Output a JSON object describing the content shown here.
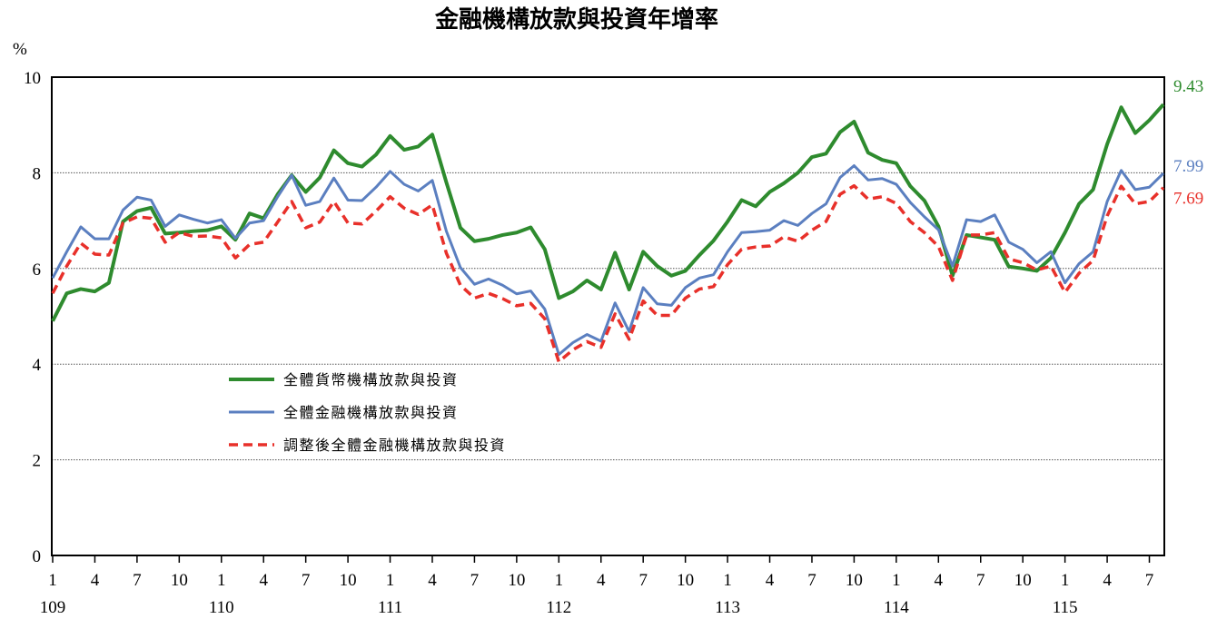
{
  "chart_data": {
    "type": "line",
    "title": "金融機構放款與投資年增率",
    "ylabel": "%",
    "ylim": [
      0,
      10
    ],
    "yticks": [
      0,
      2,
      4,
      6,
      8,
      10
    ],
    "grid": true,
    "legend_position": "lower-left",
    "x_ticks": [
      {
        "index": 0,
        "month": "1",
        "year": "109"
      },
      {
        "index": 3,
        "month": "4"
      },
      {
        "index": 6,
        "month": "7"
      },
      {
        "index": 9,
        "month": "10"
      },
      {
        "index": 12,
        "month": "1",
        "year": "110"
      },
      {
        "index": 15,
        "month": "4"
      },
      {
        "index": 18,
        "month": "7"
      },
      {
        "index": 21,
        "month": "10"
      },
      {
        "index": 24,
        "month": "1",
        "year": "111"
      },
      {
        "index": 27,
        "month": "4"
      },
      {
        "index": 30,
        "month": "7"
      },
      {
        "index": 33,
        "month": "10"
      },
      {
        "index": 36,
        "month": "1",
        "year": "112"
      },
      {
        "index": 39,
        "month": "4"
      },
      {
        "index": 42,
        "month": "7"
      },
      {
        "index": 45,
        "month": "10"
      },
      {
        "index": 48,
        "month": "1",
        "year": "113"
      },
      {
        "index": 51,
        "month": "4"
      },
      {
        "index": 54,
        "month": "7"
      },
      {
        "index": 57,
        "month": "10"
      },
      {
        "index": 60,
        "month": "1",
        "year": "114"
      },
      {
        "index": 63,
        "month": "4"
      },
      {
        "index": 66,
        "month": "7"
      },
      {
        "index": 69,
        "month": "10"
      },
      {
        "index": 72,
        "month": "1",
        "year": "115"
      },
      {
        "index": 75,
        "month": "4"
      },
      {
        "index": 78,
        "month": "7"
      }
    ],
    "series": [
      {
        "name": "全體貨幣機構放款與投資",
        "color": "#2e8b2e",
        "style": "solid",
        "end_label": "9.43",
        "values": [
          4.9,
          5.48,
          5.57,
          5.52,
          5.7,
          6.98,
          7.2,
          7.27,
          6.73,
          6.75,
          6.78,
          6.8,
          6.88,
          6.6,
          7.15,
          7.05,
          7.55,
          7.95,
          7.6,
          7.9,
          8.47,
          8.2,
          8.13,
          8.38,
          8.77,
          8.48,
          8.55,
          8.8,
          7.8,
          6.85,
          6.57,
          6.62,
          6.7,
          6.75,
          6.86,
          6.4,
          5.38,
          5.52,
          5.75,
          5.56,
          6.33,
          5.56,
          6.35,
          6.05,
          5.85,
          5.95,
          6.28,
          6.58,
          6.98,
          7.43,
          7.3,
          7.6,
          7.78,
          8.0,
          8.33,
          8.4,
          8.85,
          9.07,
          8.42,
          8.27,
          8.2,
          7.72,
          7.42,
          6.88,
          5.85,
          6.7,
          6.65,
          6.6,
          6.04,
          6.0,
          5.95,
          6.22,
          6.75,
          7.35,
          7.65,
          8.6,
          9.37,
          8.83,
          9.1,
          9.43
        ]
      },
      {
        "name": "全體金融機構放款與投資",
        "color": "#5b7fc0",
        "style": "solid",
        "end_label": "7.99",
        "values": [
          5.8,
          6.35,
          6.87,
          6.62,
          6.62,
          7.22,
          7.49,
          7.43,
          6.88,
          7.12,
          7.03,
          6.95,
          7.02,
          6.63,
          6.95,
          7.0,
          7.5,
          7.95,
          7.32,
          7.4,
          7.89,
          7.43,
          7.42,
          7.7,
          8.03,
          7.76,
          7.62,
          7.84,
          6.78,
          6.02,
          5.67,
          5.78,
          5.65,
          5.47,
          5.53,
          5.15,
          4.2,
          4.45,
          4.62,
          4.48,
          5.28,
          4.68,
          5.6,
          5.26,
          5.23,
          5.6,
          5.8,
          5.87,
          6.35,
          6.75,
          6.77,
          6.8,
          7.0,
          6.9,
          7.15,
          7.35,
          7.9,
          8.15,
          7.85,
          7.88,
          7.76,
          7.38,
          7.08,
          6.81,
          6.05,
          7.02,
          6.98,
          7.12,
          6.55,
          6.4,
          6.12,
          6.35,
          5.7,
          6.1,
          6.35,
          7.4,
          8.05,
          7.65,
          7.7,
          7.99
        ]
      },
      {
        "name": "調整後全體金融機構放款與投資",
        "color": "#e8302a",
        "style": "dashed",
        "end_label": "7.69",
        "values": [
          5.48,
          6.05,
          6.53,
          6.3,
          6.28,
          6.95,
          7.08,
          7.05,
          6.55,
          6.75,
          6.67,
          6.68,
          6.64,
          6.22,
          6.5,
          6.55,
          6.97,
          7.4,
          6.85,
          6.97,
          7.4,
          6.95,
          6.93,
          7.2,
          7.5,
          7.26,
          7.13,
          7.33,
          6.32,
          5.65,
          5.38,
          5.48,
          5.37,
          5.22,
          5.27,
          4.95,
          4.05,
          4.3,
          4.47,
          4.35,
          5.05,
          4.52,
          5.32,
          5.02,
          5.02,
          5.38,
          5.57,
          5.62,
          6.08,
          6.4,
          6.45,
          6.47,
          6.66,
          6.57,
          6.8,
          6.98,
          7.55,
          7.73,
          7.45,
          7.5,
          7.36,
          6.98,
          6.75,
          6.46,
          5.75,
          6.7,
          6.7,
          6.75,
          6.2,
          6.12,
          5.97,
          6.05,
          5.5,
          5.9,
          6.17,
          7.1,
          7.72,
          7.35,
          7.4,
          7.69
        ]
      }
    ]
  }
}
